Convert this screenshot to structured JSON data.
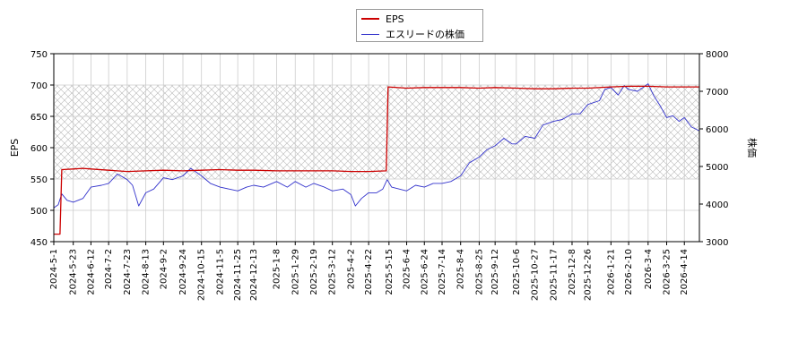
{
  "chart_data": {
    "type": "line",
    "legend": {
      "placement": "top-center",
      "items": [
        {
          "label": "EPS",
          "color": "#cc0000"
        },
        {
          "label": "エスリードの株価",
          "color": "#3333cc"
        }
      ]
    },
    "ylabel_left": "EPS",
    "ylabel_right": "株価",
    "ylim_left": [
      450,
      750
    ],
    "ylim_right": [
      3000,
      8000
    ],
    "yticks_left": [
      "450",
      "500",
      "550",
      "600",
      "650",
      "700",
      "750"
    ],
    "yticks_right": [
      "3000",
      "4000",
      "5000",
      "6000",
      "7000",
      "8000"
    ],
    "shaded_band_left": [
      550,
      700
    ],
    "grid": true,
    "x_start": "2024-5-1",
    "x_end": "2026-5-1",
    "xticks": [
      "2024-5-1",
      "2024-5-23",
      "2024-6-12",
      "2024-7-2",
      "2024-7-23",
      "2024-8-13",
      "2024-9-2",
      "2024-9-24",
      "2024-10-15",
      "2024-11-5",
      "2024-11-25",
      "2024-12-13",
      "2025-1-8",
      "2025-1-29",
      "2025-2-19",
      "2025-3-12",
      "2025-4-2",
      "2025-4-22",
      "2025-5-15",
      "2025-6-4",
      "2025-6-24",
      "2025-7-14",
      "2025-8-4",
      "2025-8-25",
      "2025-9-12",
      "2025-10-6",
      "2025-10-27",
      "2025-11-17",
      "2025-12-8",
      "2025-12-26",
      "2026-1-21",
      "2026-2-10",
      "2026-3-4",
      "2026-3-25",
      "2026-4-14"
    ],
    "series": [
      {
        "name": "EPS",
        "axis": "left",
        "color": "#cc0000",
        "points": [
          [
            "2024-5-1",
            462
          ],
          [
            "2024-5-8",
            462
          ],
          [
            "2024-5-10",
            565
          ],
          [
            "2024-5-23",
            566
          ],
          [
            "2024-6-3",
            567
          ],
          [
            "2024-6-12",
            566
          ],
          [
            "2024-7-2",
            564
          ],
          [
            "2024-7-23",
            562
          ],
          [
            "2024-8-13",
            563
          ],
          [
            "2024-9-2",
            564
          ],
          [
            "2024-9-24",
            563
          ],
          [
            "2024-10-15",
            564
          ],
          [
            "2024-11-5",
            565
          ],
          [
            "2024-11-25",
            564
          ],
          [
            "2024-12-13",
            564
          ],
          [
            "2025-1-8",
            563
          ],
          [
            "2025-1-29",
            563
          ],
          [
            "2025-2-19",
            563
          ],
          [
            "2025-3-12",
            563
          ],
          [
            "2025-4-2",
            562
          ],
          [
            "2025-4-22",
            562
          ],
          [
            "2025-5-12",
            563
          ],
          [
            "2025-5-14",
            697
          ],
          [
            "2025-6-4",
            695
          ],
          [
            "2025-6-24",
            696
          ],
          [
            "2025-7-14",
            696
          ],
          [
            "2025-8-4",
            696
          ],
          [
            "2025-8-25",
            695
          ],
          [
            "2025-9-12",
            696
          ],
          [
            "2025-10-6",
            695
          ],
          [
            "2025-10-27",
            694
          ],
          [
            "2025-11-17",
            694
          ],
          [
            "2025-12-8",
            695
          ],
          [
            "2025-12-26",
            695
          ],
          [
            "2026-1-21",
            697
          ],
          [
            "2026-2-10",
            698
          ],
          [
            "2026-3-4",
            698
          ],
          [
            "2026-3-25",
            697
          ],
          [
            "2026-4-14",
            697
          ],
          [
            "2026-5-1",
            697
          ]
        ]
      },
      {
        "name": "エスリードの株価",
        "axis": "right",
        "color": "#3333cc",
        "points": [
          [
            "2024-5-1",
            3900
          ],
          [
            "2024-5-6",
            3980
          ],
          [
            "2024-5-10",
            4270
          ],
          [
            "2024-5-16",
            4100
          ],
          [
            "2024-5-23",
            4050
          ],
          [
            "2024-6-3",
            4150
          ],
          [
            "2024-6-12",
            4450
          ],
          [
            "2024-6-24",
            4500
          ],
          [
            "2024-7-2",
            4550
          ],
          [
            "2024-7-12",
            4800
          ],
          [
            "2024-7-23",
            4650
          ],
          [
            "2024-7-29",
            4500
          ],
          [
            "2024-8-5",
            3950
          ],
          [
            "2024-8-13",
            4300
          ],
          [
            "2024-8-22",
            4400
          ],
          [
            "2024-9-2",
            4700
          ],
          [
            "2024-9-12",
            4650
          ],
          [
            "2024-9-24",
            4750
          ],
          [
            "2024-10-3",
            4950
          ],
          [
            "2024-10-15",
            4750
          ],
          [
            "2024-10-25",
            4550
          ],
          [
            "2024-11-5",
            4450
          ],
          [
            "2024-11-15",
            4400
          ],
          [
            "2024-11-25",
            4350
          ],
          [
            "2024-12-5",
            4450
          ],
          [
            "2024-12-13",
            4500
          ],
          [
            "2024-12-24",
            4450
          ],
          [
            "2025-1-8",
            4600
          ],
          [
            "2025-1-20",
            4450
          ],
          [
            "2025-1-29",
            4600
          ],
          [
            "2025-2-10",
            4450
          ],
          [
            "2025-2-19",
            4550
          ],
          [
            "2025-3-3",
            4450
          ],
          [
            "2025-3-12",
            4350
          ],
          [
            "2025-3-24",
            4400
          ],
          [
            "2025-4-2",
            4250
          ],
          [
            "2025-4-7",
            3950
          ],
          [
            "2025-4-14",
            4150
          ],
          [
            "2025-4-22",
            4300
          ],
          [
            "2025-5-1",
            4300
          ],
          [
            "2025-5-8",
            4400
          ],
          [
            "2025-5-13",
            4650
          ],
          [
            "2025-5-18",
            4450
          ],
          [
            "2025-6-4",
            4350
          ],
          [
            "2025-6-14",
            4500
          ],
          [
            "2025-6-24",
            4450
          ],
          [
            "2025-7-4",
            4550
          ],
          [
            "2025-7-14",
            4550
          ],
          [
            "2025-7-24",
            4600
          ],
          [
            "2025-8-4",
            4750
          ],
          [
            "2025-8-14",
            5100
          ],
          [
            "2025-8-25",
            5250
          ],
          [
            "2025-9-3",
            5450
          ],
          [
            "2025-9-12",
            5550
          ],
          [
            "2025-9-22",
            5750
          ],
          [
            "2025-10-1",
            5600
          ],
          [
            "2025-10-6",
            5600
          ],
          [
            "2025-10-16",
            5800
          ],
          [
            "2025-10-27",
            5750
          ],
          [
            "2025-11-5",
            6100
          ],
          [
            "2025-11-17",
            6200
          ],
          [
            "2025-11-27",
            6250
          ],
          [
            "2025-12-8",
            6400
          ],
          [
            "2025-12-17",
            6400
          ],
          [
            "2025-12-26",
            6650
          ],
          [
            "2026-1-8",
            6750
          ],
          [
            "2026-1-14",
            7050
          ],
          [
            "2026-1-21",
            7100
          ],
          [
            "2026-1-29",
            6900
          ],
          [
            "2026-2-5",
            7150
          ],
          [
            "2026-2-10",
            7050
          ],
          [
            "2026-2-20",
            7000
          ],
          [
            "2026-3-4",
            7200
          ],
          [
            "2026-3-10",
            6900
          ],
          [
            "2026-3-18",
            6600
          ],
          [
            "2026-3-25",
            6300
          ],
          [
            "2026-4-1",
            6350
          ],
          [
            "2026-4-8",
            6200
          ],
          [
            "2026-4-14",
            6300
          ],
          [
            "2026-4-22",
            6050
          ],
          [
            "2026-5-1",
            5950
          ]
        ]
      }
    ]
  }
}
